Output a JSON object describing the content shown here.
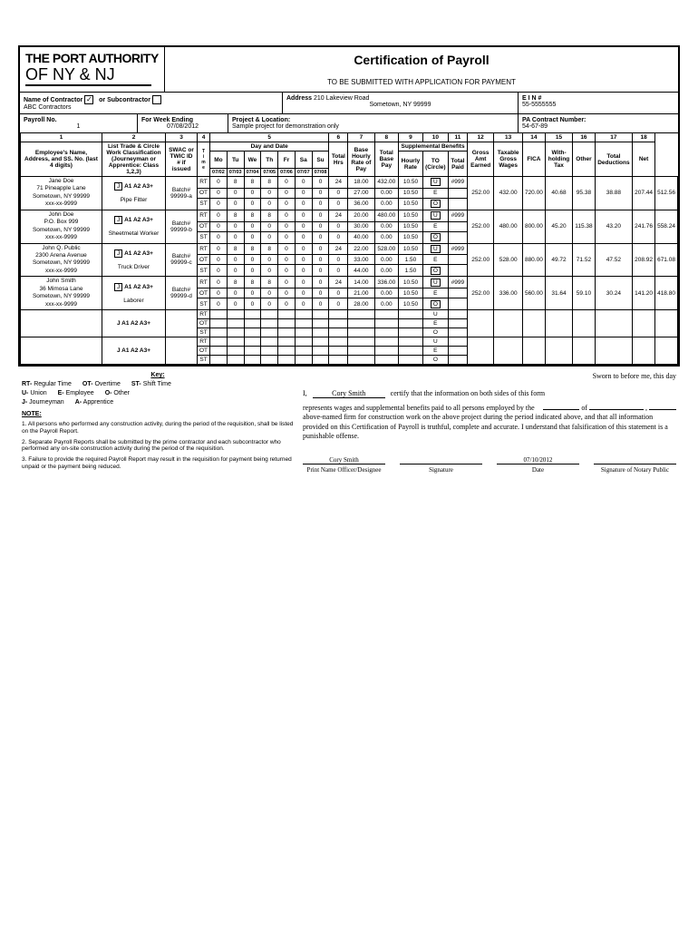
{
  "title": "Certification of Payroll",
  "subtitle": "TO BE SUBMITTED WITH APPLICATION FOR PAYMENT",
  "logo_top": "THE PORT AUTHORITY",
  "logo_bot": "OF NY & NJ",
  "labels": {
    "name_contractor": "Name of Contractor",
    "or_sub": "or Subcontractor",
    "address": "Address",
    "ein": "E I N #",
    "payroll_no": "Payroll No.",
    "week_ending": "For Week Ending",
    "project": "Project & Location:",
    "pa_contract": "PA Contract Number:",
    "emp_hdr": "Employee's Name, Address, and SS. No. (last 4 digits)",
    "trade_hdr": "List Trade & Circle Work Classification (Journeyman or Apprentice: Class 1,2,3)",
    "swac": "SWAC or TWIC ID # if issued",
    "day_date": "Day and Date",
    "total_hrs": "Total Hrs",
    "base_rate": "Base Hourly Rate of Pay",
    "total_base": "Total Base Pay",
    "supp": "Supplemental Benefits",
    "hourly_rate": "Hourly Rate",
    "to": "TO (Circle)",
    "total_paid": "Total Paid",
    "gross": "Gross Amt Earned",
    "taxable": "Taxable Gross Wages",
    "fica": "FICA",
    "withhold": "With-holding Tax",
    "other": "Other",
    "total_ded": "Total Deductions",
    "net": "Net",
    "key": "Key:",
    "note": "NOTE:",
    "sworn": "Sworn to before me, this day",
    "certify1": "certify that the information on both sides of this form",
    "certify2": "represents wages and supplemental benefits paid to all persons employed by the above-named firm for construction work on the above project during the period indicated above, and that all information provided on this Certification of Payroll is truthful, complete and accurate. I understand that falsification of this statement is a punishable offense.",
    "sig_name": "Print Name Officer/Designee",
    "sig_sig": "Signature",
    "sig_date": "Date",
    "sig_notary": "Signature of Notary Public",
    "of": "of"
  },
  "contractor": {
    "contractor_checked": "✓",
    "sub_checked": "",
    "name": "ABC Contractors",
    "address": "210 Lakeview Road",
    "address2": "Sometown, NY 99999",
    "ein": "55-5555555",
    "payroll_no": "1",
    "week_ending": "07/08/2012",
    "project": "Sample project for demonstration only",
    "pa_contract": "54-67-89"
  },
  "colnums": [
    "1",
    "2",
    "3",
    "4",
    "5",
    "6",
    "7",
    "8",
    "9",
    "10",
    "11",
    "12",
    "13",
    "14",
    "15",
    "16",
    "17",
    "18"
  ],
  "days_hdr": [
    "Mo",
    "Tu",
    "We",
    "Th",
    "Fr",
    "Sa",
    "Su"
  ],
  "dates_hdr": [
    "07/02",
    "07/03",
    "07/04",
    "07/05",
    "07/06",
    "07/07",
    "07/08"
  ],
  "key_items": [
    {
      "k": "RT-",
      "v": "Regular Time"
    },
    {
      "k": "OT-",
      "v": "Overtime"
    },
    {
      "k": "ST-",
      "v": "Shift Time"
    },
    {
      "k": "U-",
      "v": "Union"
    },
    {
      "k": "E-",
      "v": "Employee"
    },
    {
      "k": "O-",
      "v": "Other"
    },
    {
      "k": "J-",
      "v": "Journeyman"
    },
    {
      "k": "A-",
      "v": "Apprentice"
    }
  ],
  "notes": [
    "1. All persons who performed any construction activity, during the period of the requisition, shall be listed on the Payroll Report.",
    "2. Separate Payroll Reports shall be submitted by the prime contractor and each subcontractor who performed any on-site construction activity during the period of the requisition.",
    "3. Failure to provide the required Payroll Report may result in the requisition for payment being returned unpaid or the payment being reduced."
  ],
  "signer": "Cory Smith",
  "sign_date": "07/10/2012",
  "employees": [
    {
      "name": "Jane Doe",
      "addr1": "71 Pineapple Lane",
      "addr2": "Sometown, NY 99999",
      "ssn": "xxx-xx-9999",
      "trade": "Pipe Fitter",
      "swac": "Batch# 99999-a",
      "rt": {
        "d": [
          "0",
          "8",
          "8",
          "8",
          "0",
          "0",
          "0"
        ],
        "tot": "24",
        "rate": "18.00",
        "base": "432.00",
        "hr": "10.50",
        "to": "U",
        "toval": "#999"
      },
      "ot": {
        "d": [
          "0",
          "0",
          "0",
          "0",
          "0",
          "0",
          "0"
        ],
        "tot": "0",
        "rate": "27.00",
        "base": "0.00",
        "hr": "10.50",
        "to": "E",
        "toval": "",
        "tp": "252.00",
        "gross": "432.00",
        "tax": "720.00",
        "fica": "40.68",
        "wh": "95.38",
        "oth": "38.88",
        "ded": "207.44",
        "net": "512.56"
      },
      "st": {
        "d": [
          "0",
          "0",
          "0",
          "0",
          "0",
          "0",
          "0"
        ],
        "tot": "0",
        "rate": "36.00",
        "base": "0.00",
        "hr": "10.50",
        "to": "O",
        "toval": ""
      }
    },
    {
      "name": "John Doe",
      "addr1": "P.O. Box 999",
      "addr2": "Sometown, NY 99999",
      "ssn": "xxx-xx-9999",
      "trade": "Sheetmetal Worker",
      "swac": "Batch# 99999-b",
      "rt": {
        "d": [
          "0",
          "8",
          "8",
          "8",
          "0",
          "0",
          "0"
        ],
        "tot": "24",
        "rate": "20.00",
        "base": "480.00",
        "hr": "10.50",
        "to": "U",
        "toval": "#999"
      },
      "ot": {
        "d": [
          "0",
          "0",
          "0",
          "0",
          "0",
          "0",
          "0"
        ],
        "tot": "0",
        "rate": "30.00",
        "base": "0.00",
        "hr": "10.50",
        "to": "E",
        "toval": "",
        "tp": "252.00",
        "gross": "480.00",
        "tax": "800.00",
        "fica": "45.20",
        "wh": "115.38",
        "oth": "43.20",
        "ded": "241.76",
        "net": "558.24"
      },
      "st": {
        "d": [
          "0",
          "0",
          "0",
          "0",
          "0",
          "0",
          "0"
        ],
        "tot": "0",
        "rate": "40.00",
        "base": "0.00",
        "hr": "10.50",
        "to": "O",
        "toval": ""
      }
    },
    {
      "name": "John Q. Public",
      "addr1": "2300 Arena Avenue",
      "addr2": "Sometown, NY 99999",
      "ssn": "xxx-xx-9999",
      "trade": "Truck Driver",
      "swac": "Batch# 99999-c",
      "rt": {
        "d": [
          "0",
          "8",
          "8",
          "8",
          "0",
          "0",
          "0"
        ],
        "tot": "24",
        "rate": "22.00",
        "base": "528.00",
        "hr": "10.50",
        "to": "U",
        "toval": "#999"
      },
      "ot": {
        "d": [
          "0",
          "0",
          "0",
          "0",
          "0",
          "0",
          "0"
        ],
        "tot": "0",
        "rate": "33.00",
        "base": "0.00",
        "hr": "1.50",
        "to": "E",
        "toval": "",
        "tp": "252.00",
        "gross": "528.00",
        "tax": "880.00",
        "fica": "49.72",
        "wh": "71.52",
        "oth": "47.52",
        "ded": "208.92",
        "net": "671.08"
      },
      "st": {
        "d": [
          "0",
          "0",
          "0",
          "0",
          "0",
          "0",
          "0"
        ],
        "tot": "0",
        "rate": "44.00",
        "base": "0.00",
        "hr": "1.50",
        "to": "O",
        "toval": ""
      }
    },
    {
      "name": "John Smith",
      "addr1": "36 Mimosa Lane",
      "addr2": "Sometown, NY 99999",
      "ssn": "xxx-xx-9999",
      "trade": "Laborer",
      "swac": "Batch# 99999-d",
      "rt": {
        "d": [
          "0",
          "8",
          "8",
          "8",
          "0",
          "0",
          "0"
        ],
        "tot": "24",
        "rate": "14.00",
        "base": "336.00",
        "hr": "10.50",
        "to": "U",
        "toval": "#999"
      },
      "ot": {
        "d": [
          "0",
          "0",
          "0",
          "0",
          "0",
          "0",
          "0"
        ],
        "tot": "0",
        "rate": "21.00",
        "base": "0.00",
        "hr": "10.50",
        "to": "E",
        "toval": "",
        "tp": "252.00",
        "gross": "336.00",
        "tax": "560.00",
        "fica": "31.64",
        "wh": "59.10",
        "oth": "30.24",
        "ded": "141.20",
        "net": "418.80"
      },
      "st": {
        "d": [
          "0",
          "0",
          "0",
          "0",
          "0",
          "0",
          "0"
        ],
        "tot": "0",
        "rate": "28.00",
        "base": "0.00",
        "hr": "10.50",
        "to": "O",
        "toval": ""
      }
    }
  ],
  "trade_opts": "J  A1  A2  A3+"
}
